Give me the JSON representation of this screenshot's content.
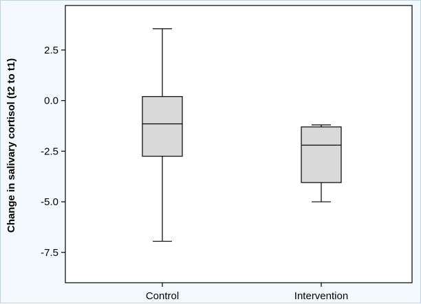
{
  "colors": {
    "page_background": "#f3f9fd",
    "plot_background": "#ffffff",
    "box_fill": "#d9d9d9",
    "stroke": "#000000"
  },
  "chart_data": {
    "type": "box",
    "title": "",
    "xlabel": "",
    "ylabel": "Change in salivary cortisol (t2 to t1)",
    "ylim": [
      -9.0,
      4.7
    ],
    "yticks": [
      2.5,
      0.0,
      -2.5,
      -5.0,
      -7.5
    ],
    "ytick_labels": [
      "2.5",
      "0.0",
      "-2.5",
      "-5.0",
      "-7.5"
    ],
    "grid": false,
    "legend": "none",
    "categories": [
      "Control",
      "Intervention"
    ],
    "boxes": [
      {
        "label": "Control",
        "whisker_low": -6.95,
        "q1": -2.75,
        "median": -1.15,
        "q3": 0.2,
        "whisker_high": 3.55
      },
      {
        "label": "Intervention",
        "whisker_low": -5.0,
        "q1": -4.05,
        "median": -2.2,
        "q3": -1.3,
        "whisker_high": -1.2
      }
    ]
  }
}
